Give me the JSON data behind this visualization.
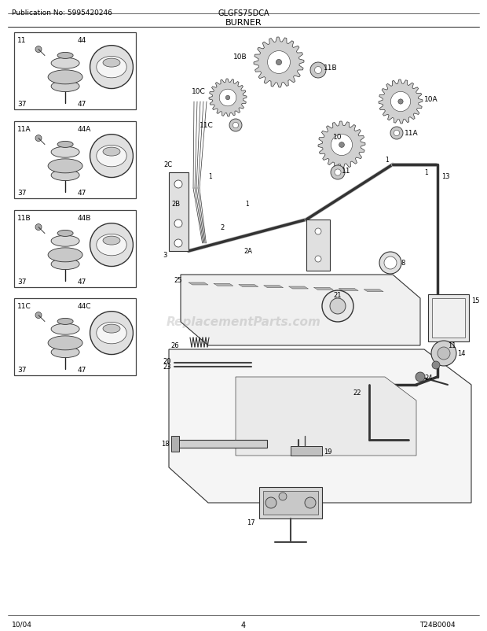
{
  "title_model": "GLGFS75DCA",
  "title_section": "BURNER",
  "pub_no": "Publication No: 5995420246",
  "diagram_code": "T24B0004",
  "date": "10/04",
  "page": "4",
  "bg_color": "#f5f5f0",
  "border_color": "#000000",
  "text_color": "#000000",
  "line_color": "#222222",
  "figsize": [
    6.2,
    8.03
  ],
  "dpi": 100,
  "watermark": "ReplacementParts.com",
  "watermark_alpha": 0.25
}
